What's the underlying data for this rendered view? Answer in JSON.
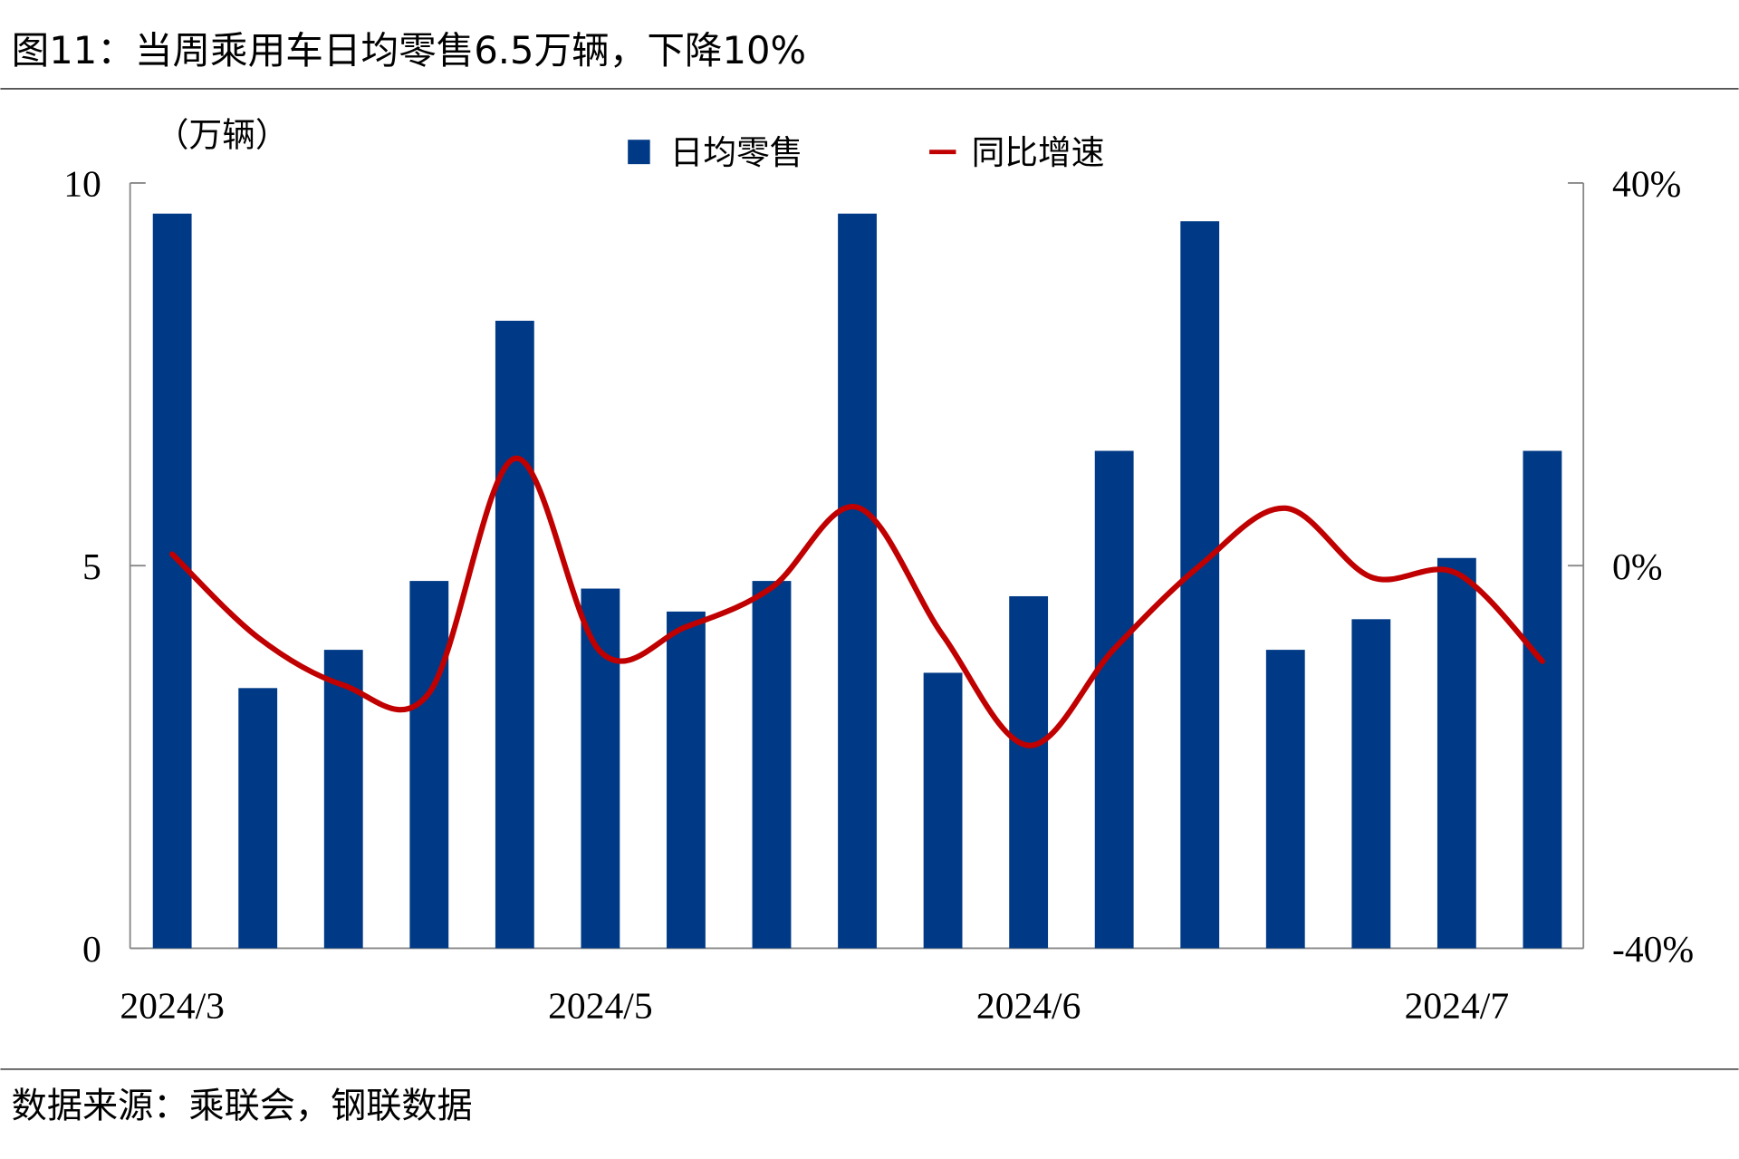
{
  "title": "图11：当周乘用车日均零售6.5万辆，下降10%",
  "source": "数据来源：乘联会，钢联数据",
  "colors": {
    "bar": "#003a86",
    "line": "#c00000",
    "axis": "#888888"
  },
  "chart_data": {
    "type": "bar",
    "title": "图11：当周乘用车日均零售6.5万辆，下降10%",
    "unit_label": "（万辆）",
    "left_axis": {
      "ylim": [
        0,
        10
      ],
      "ticks": [
        "0",
        "5",
        "10"
      ],
      "values": [
        0,
        5,
        10
      ]
    },
    "right_axis": {
      "ylim": [
        -40,
        40
      ],
      "ticks": [
        "-40%",
        "0%",
        "40%"
      ],
      "values": [
        -40,
        0,
        40
      ]
    },
    "x_tick_labels": [
      {
        "index": 0,
        "label": "2024/3"
      },
      {
        "index": 5,
        "label": "2024/5"
      },
      {
        "index": 10,
        "label": "2024/6"
      },
      {
        "index": 15,
        "label": "2024/7"
      }
    ],
    "legend": {
      "placement": "top-center",
      "bar_label": "日均零售",
      "line_label": "同比增速"
    },
    "series": [
      {
        "name": "日均零售",
        "type": "bar",
        "axis": "left",
        "values": [
          9.6,
          3.4,
          3.9,
          4.8,
          8.2,
          4.7,
          4.4,
          4.8,
          9.6,
          3.6,
          4.6,
          6.5,
          9.5,
          3.9,
          4.3,
          5.1,
          6.5
        ]
      },
      {
        "name": "同比增速",
        "type": "line",
        "axis": "right",
        "unit": "%",
        "values": [
          1.2,
          -7.5,
          -12.5,
          -13.3,
          11.2,
          -9.0,
          -6.4,
          -2.3,
          6.1,
          -7.3,
          -18.8,
          -8.7,
          0.0,
          6.0,
          -1.2,
          -0.8,
          -10.0
        ]
      }
    ]
  }
}
